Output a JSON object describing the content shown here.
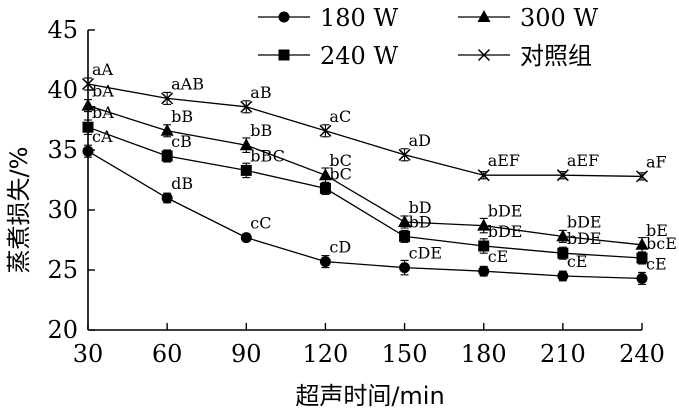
{
  "chart_data": {
    "type": "line",
    "xlabel": "超声时间/min",
    "ylabel": "蒸煮损失/%",
    "xlim": [
      30,
      240
    ],
    "ylim": [
      20,
      45
    ],
    "x": [
      30,
      60,
      90,
      120,
      150,
      180,
      210,
      240
    ],
    "x_ticks": [
      "30",
      "60",
      "90",
      "120",
      "150",
      "180",
      "210",
      "240"
    ],
    "y_ticks": [
      "20",
      "25",
      "30",
      "35",
      "40",
      "45"
    ],
    "y_tick_values": [
      20,
      25,
      30,
      35,
      40,
      45
    ],
    "grid": false,
    "legend_position": "top",
    "series": [
      {
        "name": "180 W",
        "marker": "circle",
        "values": [
          34.9,
          31.0,
          27.7,
          25.7,
          25.2,
          24.9,
          24.5,
          24.3
        ],
        "errors": [
          0.5,
          0.4,
          0.3,
          0.5,
          0.6,
          0.4,
          0.4,
          0.5
        ],
        "labels": [
          "cA",
          "dB",
          "cC",
          "cD",
          "cDE",
          "cE",
          "cE",
          "cE"
        ]
      },
      {
        "name": "300 W",
        "marker": "triangle",
        "values": [
          38.7,
          36.6,
          35.4,
          32.9,
          29.0,
          28.7,
          27.8,
          27.1
        ],
        "errors": [
          0.5,
          0.5,
          0.6,
          0.6,
          0.5,
          0.6,
          0.5,
          0.6
        ],
        "labels": [
          "bA",
          "bB",
          "bB",
          "bC",
          "bD",
          "bDE",
          "bDE",
          "bE"
        ]
      },
      {
        "name": "240 W",
        "marker": "square",
        "values": [
          36.9,
          34.5,
          33.3,
          31.8,
          27.8,
          27.0,
          26.4,
          26.0
        ],
        "errors": [
          0.6,
          0.5,
          0.6,
          0.5,
          0.5,
          0.6,
          0.5,
          0.5
        ],
        "labels": [
          "bA",
          "cB",
          "bBC",
          "bC",
          "bD",
          "bDE",
          "bDE",
          "bcE"
        ]
      },
      {
        "name": "对照组",
        "marker": "x",
        "values": [
          40.5,
          39.3,
          38.6,
          36.6,
          34.6,
          32.9,
          32.9,
          32.8
        ],
        "errors": [
          0.5,
          0.5,
          0.5,
          0.5,
          0.5,
          0.3,
          0.3,
          0.3
        ],
        "labels": [
          "aA",
          "aAB",
          "aB",
          "aC",
          "aD",
          "aEF",
          "aEF",
          "aF"
        ]
      }
    ]
  }
}
